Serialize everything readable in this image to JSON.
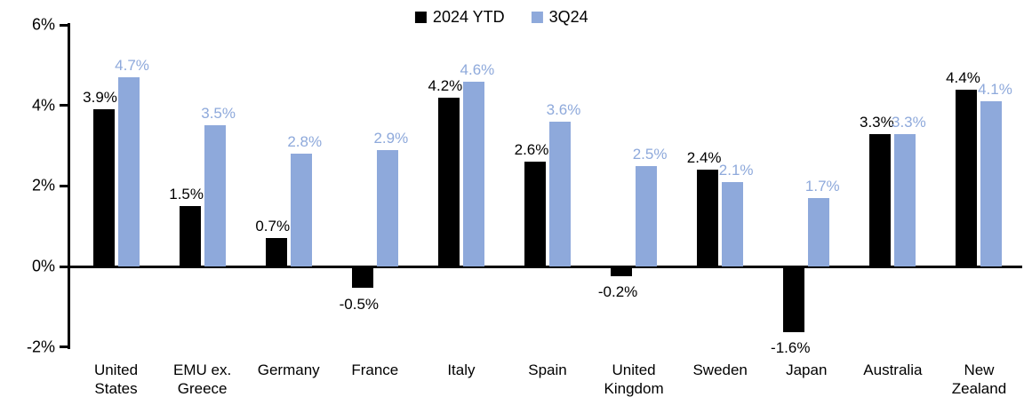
{
  "chart_data": {
    "type": "bar",
    "title": "",
    "categories": [
      "United States",
      "EMU ex. Greece",
      "Germany",
      "France",
      "Italy",
      "Spain",
      "United Kingdom",
      "Sweden",
      "Japan",
      "Australia",
      "New Zealand"
    ],
    "series": [
      {
        "name": "2024 YTD",
        "color": "#000000",
        "values": [
          3.9,
          1.5,
          0.7,
          -0.5,
          4.2,
          2.6,
          -0.2,
          2.4,
          -1.6,
          3.3,
          4.4
        ]
      },
      {
        "name": "3Q24",
        "color": "#8EA9DB",
        "values": [
          4.7,
          3.5,
          2.8,
          2.9,
          4.6,
          3.6,
          2.5,
          2.1,
          1.7,
          3.3,
          4.1
        ]
      }
    ],
    "value_labels": {
      "2024 YTD": [
        "3.9%",
        "1.5%",
        "0.7%",
        "-0.5%",
        "4.2%",
        "2.6%",
        "-0.2%",
        "2.4%",
        "-1.6%",
        "3.3%",
        "4.4%"
      ],
      "3Q24": [
        "4.7%",
        "3.5%",
        "2.8%",
        "2.9%",
        "4.6%",
        "3.6%",
        "2.5%",
        "2.1%",
        "1.7%",
        "3.3%",
        "4.1%"
      ]
    },
    "xlabel": "",
    "ylabel": "",
    "ylim": [
      -2,
      6
    ],
    "y_ticks": [
      {
        "label": "6%",
        "value": 6
      },
      {
        "label": "4%",
        "value": 4
      },
      {
        "label": "2%",
        "value": 2
      },
      {
        "label": "0%",
        "value": 0
      },
      {
        "label": "-2%",
        "value": -2
      }
    ],
    "grid": false,
    "legend_position": "top-center",
    "colors": {
      "series_2024_ytd": "#000000",
      "series_3q24": "#8EA9DB",
      "axis": "#000000",
      "background": "#FFFFFF"
    }
  }
}
